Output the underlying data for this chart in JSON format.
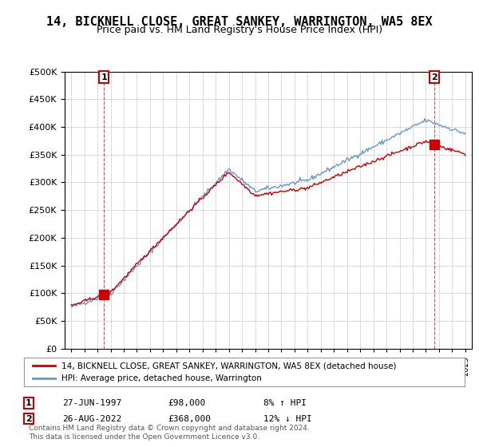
{
  "title": "14, BICKNELL CLOSE, GREAT SANKEY, WARRINGTON, WA5 8EX",
  "subtitle": "Price paid vs. HM Land Registry's House Price Index (HPI)",
  "ylim": [
    0,
    500000
  ],
  "yticks": [
    0,
    50000,
    100000,
    150000,
    200000,
    250000,
    300000,
    350000,
    400000,
    450000,
    500000
  ],
  "sale1_date": 1997.49,
  "sale1_price": 98000,
  "sale1_label": "1",
  "sale2_date": 2022.65,
  "sale2_price": 368000,
  "sale2_label": "2",
  "legend_line1": "14, BICKNELL CLOSE, GREAT SANKEY, WARRINGTON, WA5 8EX (detached house)",
  "legend_line2": "HPI: Average price, detached house, Warrington",
  "table_row1": [
    "1",
    "27-JUN-1997",
    "£98,000",
    "8% ↑ HPI"
  ],
  "table_row2": [
    "2",
    "26-AUG-2022",
    "£368,000",
    "12% ↓ HPI"
  ],
  "footnote": "Contains HM Land Registry data © Crown copyright and database right 2024.\nThis data is licensed under the Open Government Licence v3.0.",
  "line_color_red": "#cc0000",
  "line_color_blue": "#6699cc",
  "marker_color_red": "#cc0000",
  "grid_color": "#cccccc",
  "background_color": "#ffffff",
  "title_fontsize": 11,
  "subtitle_fontsize": 9,
  "axis_fontsize": 8
}
